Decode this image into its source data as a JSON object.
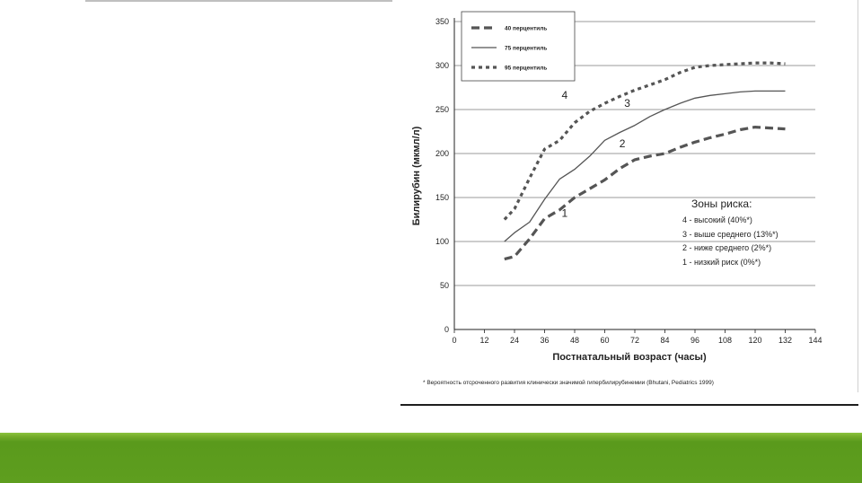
{
  "chart_data": {
    "type": "line",
    "title": "",
    "xlabel": "Постнатальный возраст (часы)",
    "ylabel": "Билирубин (мкмл/л)",
    "xlim": [
      0,
      144
    ],
    "ylim": [
      0,
      350
    ],
    "xticks": [
      0,
      12,
      24,
      36,
      48,
      60,
      72,
      84,
      96,
      108,
      120,
      132,
      144
    ],
    "yticks": [
      0,
      50,
      100,
      150,
      200,
      250,
      300,
      350
    ],
    "grid": "horizontal",
    "legend_position": "top-left",
    "series": [
      {
        "name": "40 перцентиль",
        "style": "dashed-thick",
        "x": [
          20,
          24,
          30,
          36,
          42,
          48,
          54,
          60,
          66,
          72,
          78,
          84,
          90,
          96,
          102,
          108,
          114,
          120,
          126,
          132
        ],
        "y": [
          80,
          83,
          103,
          126,
          136,
          150,
          160,
          170,
          183,
          193,
          197,
          200,
          207,
          213,
          218,
          222,
          227,
          230,
          229,
          228
        ]
      },
      {
        "name": "75 перцентиль",
        "style": "solid",
        "x": [
          20,
          24,
          30,
          36,
          42,
          48,
          54,
          60,
          66,
          72,
          78,
          84,
          90,
          96,
          102,
          108,
          114,
          120,
          126,
          132
        ],
        "y": [
          100,
          110,
          122,
          148,
          171,
          182,
          197,
          215,
          224,
          232,
          242,
          250,
          257,
          263,
          266,
          268,
          270,
          271,
          271,
          271
        ]
      },
      {
        "name": "95 перцентиль",
        "style": "dotted",
        "x": [
          20,
          24,
          30,
          36,
          42,
          48,
          54,
          60,
          66,
          72,
          78,
          84,
          90,
          96,
          102,
          108,
          114,
          120,
          126,
          132
        ],
        "y": [
          125,
          137,
          172,
          205,
          215,
          235,
          248,
          257,
          265,
          272,
          278,
          284,
          292,
          298,
          300,
          301,
          302,
          303,
          303,
          302
        ]
      }
    ],
    "curve_labels": [
      {
        "text": "4",
        "x": 44,
        "y": 262
      },
      {
        "text": "3",
        "x": 69,
        "y": 253
      },
      {
        "text": "2",
        "x": 67,
        "y": 207
      },
      {
        "text": "1",
        "x": 44,
        "y": 128
      }
    ],
    "annotation": {
      "title": "Зоны риска:",
      "items": [
        "4 - высокий (40%*)",
        "3 - выше среднего (13%*)",
        "2 - ниже среднего (2%*)",
        "1 - низкий риск (0%*)"
      ]
    },
    "footnote": "* Вероятность отсроченного развития клинически значимой гипербилирубинемии (Bhutani, Pediatrics 1999)"
  },
  "colors": {
    "line": "#555555",
    "grid": "#7a7a7a",
    "band": "#5e9e1f"
  }
}
